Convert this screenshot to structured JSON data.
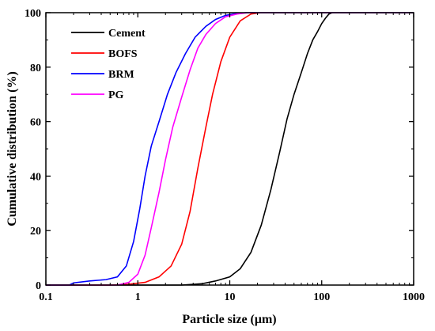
{
  "chart_data": {
    "type": "line",
    "xlabel": "Particle size (μm)",
    "ylabel": "Cumulative distribution (%)",
    "xscale": "log",
    "xlim": [
      0.1,
      1000
    ],
    "ylim": [
      0,
      100
    ],
    "x_ticks": [
      0.1,
      1,
      10,
      100,
      1000
    ],
    "x_tick_labels": [
      "0.1",
      "1",
      "10",
      "100",
      "1000"
    ],
    "y_ticks": [
      0,
      20,
      40,
      60,
      80,
      100
    ],
    "y_tick_labels": [
      "0",
      "20",
      "40",
      "60",
      "80",
      "100"
    ],
    "grid": false,
    "legend_position": "top-left",
    "series": [
      {
        "name": "Cement",
        "color": "#000000",
        "x": [
          0.1,
          3,
          5,
          7,
          10,
          13,
          17,
          22,
          28,
          35,
          42,
          50,
          60,
          70,
          80,
          90,
          100,
          110,
          120,
          130,
          1000
        ],
        "y": [
          0,
          0,
          0.5,
          1.5,
          3,
          6,
          12,
          22,
          35,
          49,
          61,
          70,
          78,
          85,
          90,
          93,
          96,
          98,
          99.5,
          100,
          100
        ]
      },
      {
        "name": "BOFS",
        "color": "#ff0000",
        "x": [
          0.1,
          0.5,
          0.8,
          1.2,
          1.7,
          2.3,
          3,
          3.7,
          4.5,
          5.5,
          6.5,
          8,
          10,
          13,
          17,
          22,
          1000
        ],
        "y": [
          0,
          0,
          0.3,
          1,
          3,
          7,
          15,
          27,
          43,
          58,
          70,
          82,
          91,
          97,
          99.5,
          100,
          100
        ]
      },
      {
        "name": "BRM",
        "color": "#0000ff",
        "x": [
          0.1,
          0.18,
          0.2,
          0.3,
          0.45,
          0.6,
          0.75,
          0.9,
          1.05,
          1.2,
          1.4,
          1.7,
          2.1,
          2.6,
          3.3,
          4.2,
          5.5,
          7,
          9,
          12,
          15,
          20,
          1000
        ],
        "y": [
          0,
          0,
          0.8,
          1.5,
          2,
          3,
          7,
          16,
          28,
          40,
          51,
          60,
          70,
          78,
          85,
          91,
          95,
          97.5,
          99,
          99.7,
          100,
          100,
          100
        ]
      },
      {
        "name": "PG",
        "color": "#ff00ff",
        "x": [
          0.1,
          0.6,
          0.8,
          1,
          1.2,
          1.4,
          1.7,
          2,
          2.4,
          3,
          3.7,
          4.5,
          5.5,
          7,
          9,
          12,
          16,
          20,
          1000
        ],
        "y": [
          0,
          0,
          1,
          4,
          11,
          21,
          34,
          46,
          58,
          69,
          79,
          87,
          92,
          96,
          98.5,
          99.5,
          100,
          100,
          100
        ]
      }
    ]
  }
}
